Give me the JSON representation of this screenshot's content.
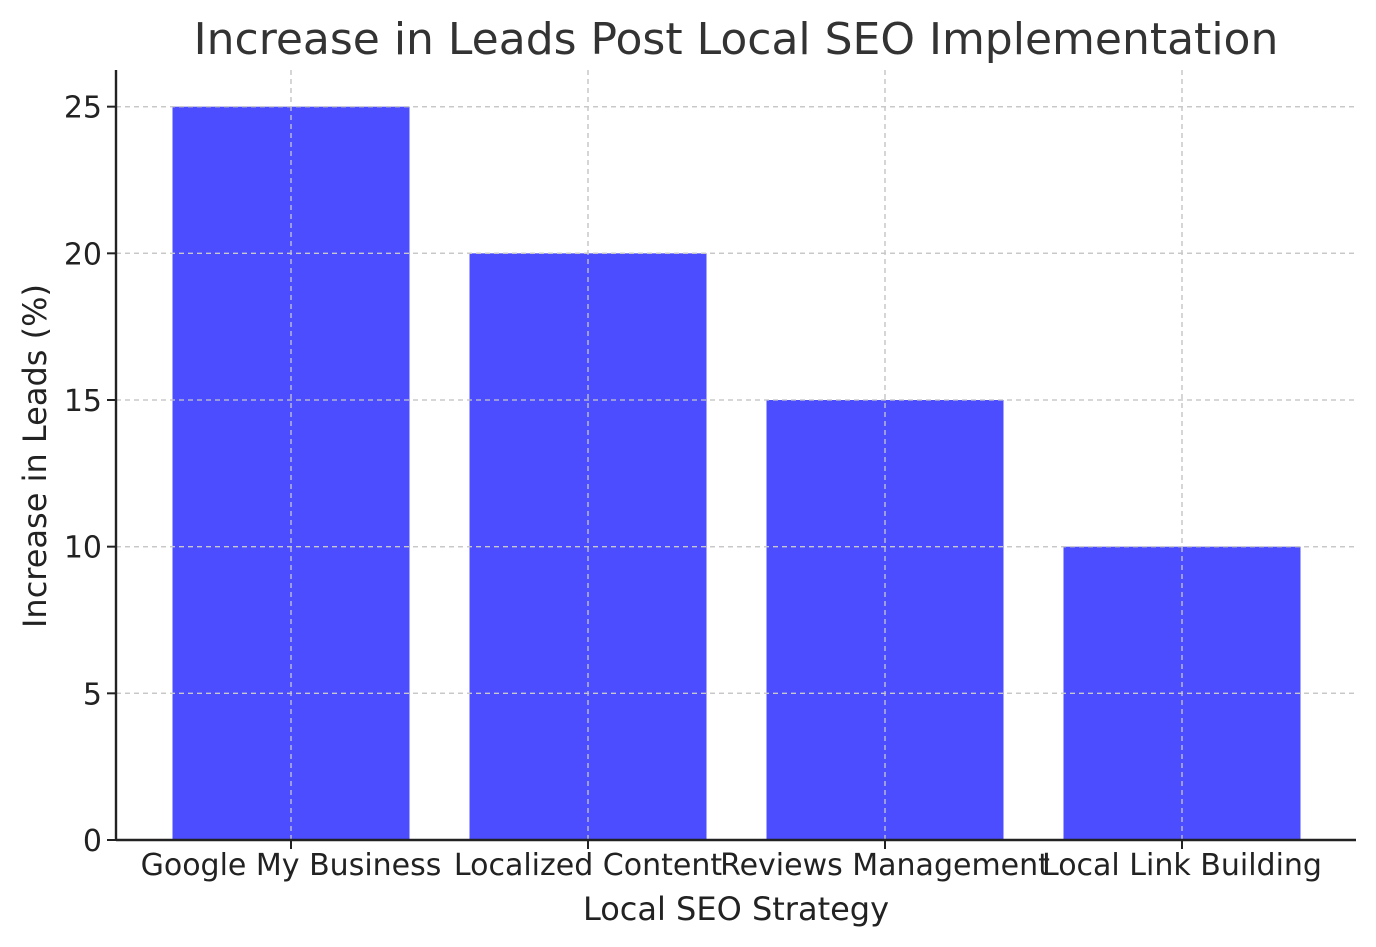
{
  "chart_data": {
    "type": "bar",
    "title": "Increase in Leads Post Local SEO Implementation",
    "xlabel": "Local SEO Strategy",
    "ylabel": "Increase in Leads (%)",
    "categories": [
      "Google My Business",
      "Localized Content",
      "Reviews Management",
      "Local Link Building"
    ],
    "values": [
      25,
      20,
      15,
      10
    ],
    "ylim": [
      0,
      26.25
    ],
    "yticks": [
      0,
      5,
      10,
      15,
      20,
      25
    ],
    "bar_color": "#4b4dff",
    "grid": true,
    "legend": "none"
  }
}
